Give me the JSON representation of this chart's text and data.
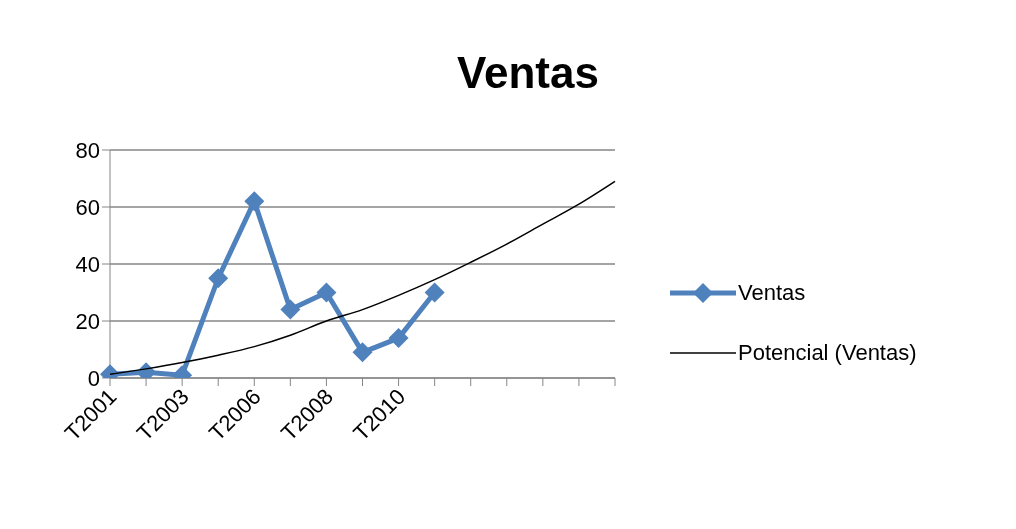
{
  "chart_data": {
    "type": "line",
    "title": "Ventas",
    "categories": [
      "T2001",
      null,
      "T2003",
      null,
      "T2006",
      null,
      "T2008",
      null,
      "T2010",
      null,
      null,
      null,
      null,
      null,
      null
    ],
    "series": [
      {
        "name": "Ventas",
        "color": "#4f81bd",
        "marker": "diamond",
        "values": [
          1.3,
          2,
          1,
          35,
          62,
          24,
          30,
          9,
          14,
          30,
          null,
          null,
          null,
          null,
          null
        ]
      },
      {
        "name": "Potencial (Ventas)",
        "color": "#000000",
        "marker": "none",
        "values": [
          1.3,
          3.2,
          5.4,
          8,
          11,
          15,
          20,
          24,
          29,
          34.5,
          40.6,
          47,
          54,
          61,
          69
        ]
      }
    ],
    "ylim": [
      0,
      80
    ],
    "yticks": [
      0,
      20,
      40,
      60,
      80
    ],
    "grid": "y",
    "legend": "right",
    "line_style": "solid"
  }
}
